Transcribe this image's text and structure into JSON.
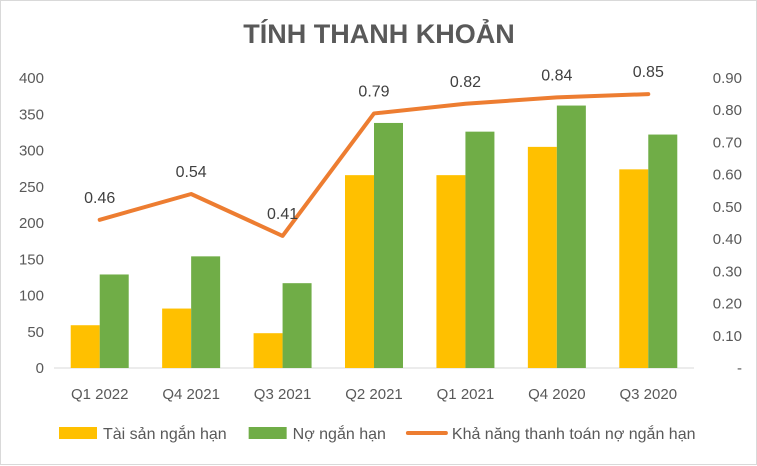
{
  "chart_data": {
    "type": "bar",
    "title": "TÍNH THANH KHOẢN",
    "categories": [
      "Q1 2022",
      "Q4 2021",
      "Q3 2021",
      "Q2 2021",
      "Q1 2021",
      "Q4 2020",
      "Q3 2020"
    ],
    "series": [
      {
        "name": "Tài sản ngắn hạn",
        "type": "bar",
        "axis": "left",
        "color": "#FFC000",
        "values": [
          59,
          82,
          48,
          266,
          266,
          305,
          274
        ]
      },
      {
        "name": "Nợ ngắn hạn",
        "type": "bar",
        "axis": "left",
        "color": "#70AD47",
        "values": [
          129,
          154,
          117,
          338,
          326,
          362,
          322
        ]
      },
      {
        "name": "Khả năng thanh toán nợ ngắn hạn",
        "type": "line",
        "axis": "right",
        "color": "#ED7D31",
        "values": [
          0.46,
          0.54,
          0.41,
          0.79,
          0.82,
          0.84,
          0.85
        ],
        "data_labels": [
          "0.46",
          "0.54",
          "0.41",
          "0.79",
          "0.82",
          "0.84",
          "0.85"
        ]
      }
    ],
    "y_left": {
      "ylim": [
        0,
        400
      ],
      "ticks": [
        "0",
        "50",
        "100",
        "150",
        "200",
        "250",
        "300",
        "350",
        "400"
      ]
    },
    "y_right": {
      "ylim": [
        0,
        0.9
      ],
      "ticks": [
        "-",
        "0.10",
        "0.20",
        "0.30",
        "0.40",
        "0.50",
        "0.60",
        "0.70",
        "0.80",
        "0.90"
      ]
    },
    "grid": false,
    "legend": "bottom"
  }
}
